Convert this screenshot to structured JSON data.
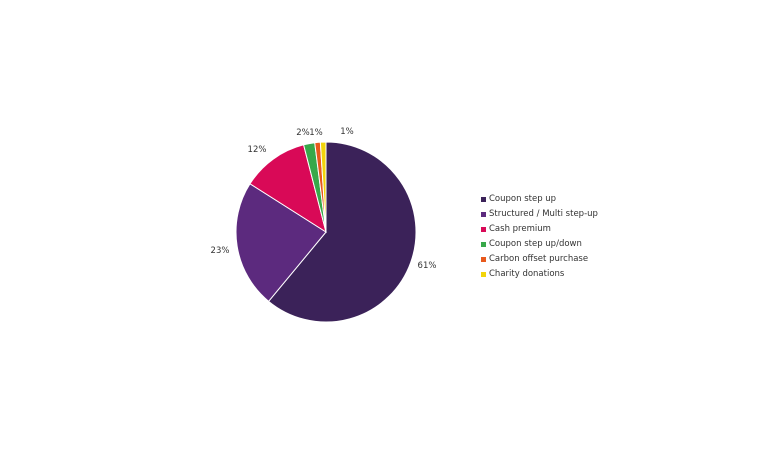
{
  "chart_data": {
    "type": "pie",
    "start": "top",
    "direction": "clockwise",
    "legend_position": "right",
    "slices": [
      {
        "name": "Coupon step up",
        "value": 61,
        "label": "61%",
        "color": "#3b2259"
      },
      {
        "name": "Structured / Multi step-up",
        "value": 23,
        "label": "23%",
        "color": "#5c2a7e"
      },
      {
        "name": "Cash premium",
        "value": 12,
        "label": "12%",
        "color": "#d90957"
      },
      {
        "name": "Coupon step up/down",
        "value": 2,
        "label": "2%",
        "color": "#38a84a"
      },
      {
        "name": "Carbon offset purchase",
        "value": 1,
        "label": "1%",
        "color": "#e8591c"
      },
      {
        "name": "Charity donations",
        "value": 1,
        "label": "1%",
        "color": "#f2d40a"
      }
    ]
  }
}
